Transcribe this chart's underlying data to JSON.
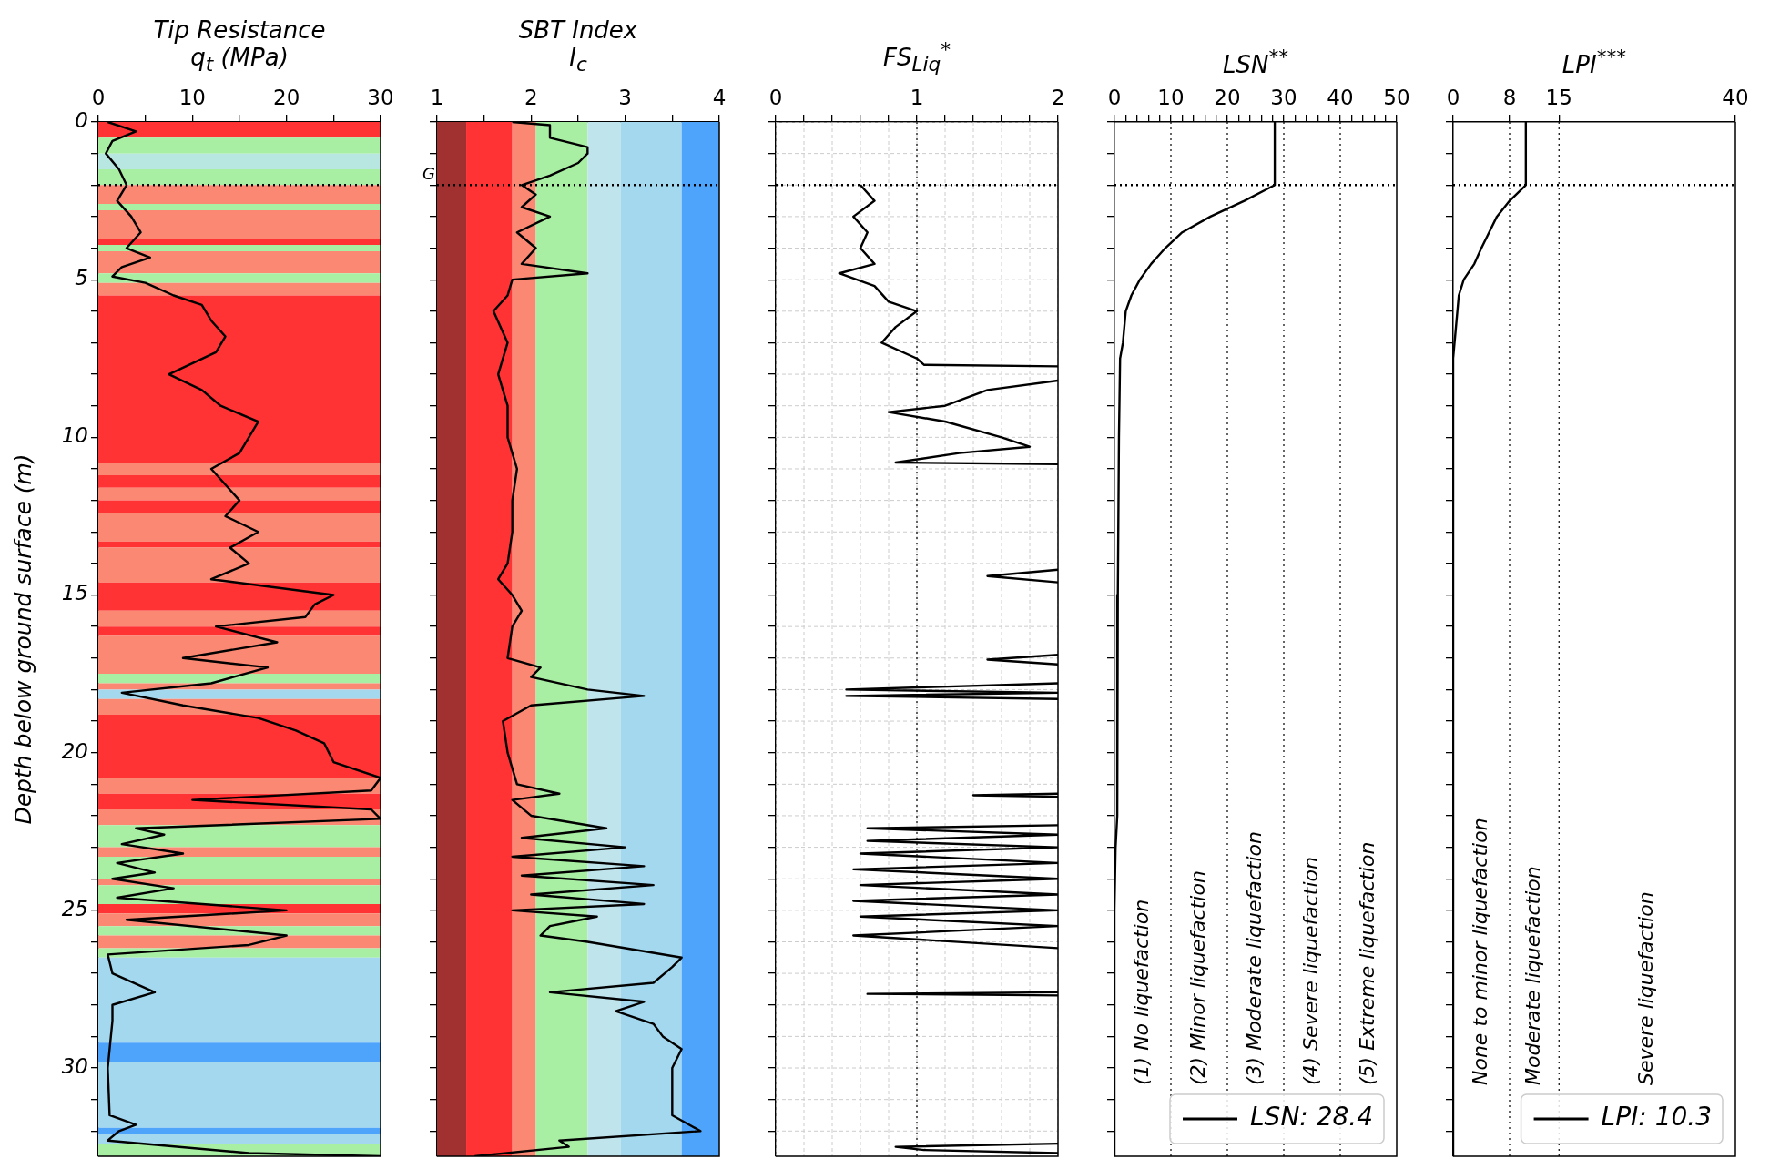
{
  "chart_data": [
    {
      "type": "line",
      "orientation": "horizontal",
      "title": "Tip Resistance",
      "subtitle": "q$_{t}$ (MPa)",
      "ylabel": "Depth below ground surface (m)",
      "marker": "none",
      "line_style": "solid",
      "xlim": [
        0,
        30
      ],
      "xticks": [
        0,
        {
          "value": 5,
          "label": null
        },
        10,
        {
          "value": 15,
          "label": null
        },
        20,
        {
          "value": 25,
          "label": null
        },
        30
      ],
      "ylim": [
        32.8,
        0
      ],
      "yticks": [
        0,
        {
          "value": 1,
          "label": null
        },
        {
          "value": 2,
          "label": null
        },
        {
          "value": 3,
          "label": null
        },
        {
          "value": 4,
          "label": null
        },
        5,
        {
          "value": 6,
          "label": null
        },
        {
          "value": 7,
          "label": null
        },
        {
          "value": 8,
          "label": null
        },
        {
          "value": 9,
          "label": null
        },
        10,
        {
          "value": 11,
          "label": null
        },
        {
          "value": 12,
          "label": null
        },
        {
          "value": 13,
          "label": null
        },
        {
          "value": 14,
          "label": null
        },
        15,
        {
          "value": 16,
          "label": null
        },
        {
          "value": 17,
          "label": null
        },
        {
          "value": 18,
          "label": null
        },
        {
          "value": 19,
          "label": null
        },
        20,
        {
          "value": 21,
          "label": null
        },
        {
          "value": 22,
          "label": null
        },
        {
          "value": 23,
          "label": null
        },
        {
          "value": 24,
          "label": null
        },
        25,
        {
          "value": 26,
          "label": null
        },
        {
          "value": 27,
          "label": null
        },
        {
          "value": 28,
          "label": null
        },
        {
          "value": 29,
          "label": null
        },
        30,
        {
          "value": 31,
          "label": null
        },
        {
          "value": 32,
          "label": null
        }
      ],
      "series": [
        {
          "color": "#000000",
          "x": [
            0,
            0.3,
            0.6,
            1,
            1.5,
            2,
            2.5,
            3,
            3.5,
            4,
            4.3,
            4.6,
            4.9,
            5.1,
            5.5,
            5.8,
            6.3,
            6.8,
            7.3,
            8,
            8.5,
            9,
            9.5,
            10,
            10.5,
            11,
            12,
            12.5,
            13,
            13.5,
            14,
            14.5,
            15,
            15.3,
            15.7,
            16,
            16.5,
            17,
            17.3,
            17.8,
            18.1,
            18.5,
            18.9,
            19.3,
            19.7,
            20.3,
            20.8,
            21.2,
            21.5,
            21.8,
            22.1,
            22.4,
            22.6,
            22.9,
            23.2,
            23.5,
            23.8,
            24,
            24.3,
            24.6,
            25,
            25.3,
            25.8,
            26.1,
            26.4,
            27,
            27.6,
            28,
            28.5,
            30,
            31.5,
            31.8,
            32,
            32.3,
            32.7,
            32.8
          ],
          "values": [
            1,
            4,
            1.5,
            0.8,
            2.2,
            3,
            2,
            3.5,
            4.5,
            3,
            5.5,
            2.5,
            1.5,
            5,
            8,
            11,
            12,
            13.5,
            12.5,
            7.5,
            11,
            13,
            17,
            16,
            15,
            12,
            15,
            13.5,
            17,
            14,
            16,
            12,
            25,
            23,
            22,
            12.5,
            19,
            9,
            18,
            12,
            2.5,
            9,
            17,
            21,
            24,
            25,
            30,
            29,
            10,
            29,
            30,
            4,
            7,
            2.5,
            9,
            2,
            6,
            1.5,
            8,
            2,
            20,
            3,
            20,
            16,
            1,
            1.5,
            6,
            1.5,
            1.5,
            1,
            1.2,
            4,
            2.2,
            1,
            16,
            30
          ]
        }
      ],
      "bands": [
        {
          "axis": "y",
          "from": 0,
          "to": 0.5,
          "color": "#ff3333"
        },
        {
          "axis": "y",
          "from": 0.5,
          "to": 1,
          "color": "#a8eea3"
        },
        {
          "axis": "y",
          "from": 1,
          "to": 1.5,
          "color": "#b8e6e0"
        },
        {
          "axis": "y",
          "from": 1.5,
          "to": 2,
          "color": "#a8eea3"
        },
        {
          "axis": "y",
          "from": 2,
          "to": 2.6,
          "color": "#fa8872"
        },
        {
          "axis": "y",
          "from": 2.6,
          "to": 2.8,
          "color": "#a8eea3"
        },
        {
          "axis": "y",
          "from": 2.8,
          "to": 3.7,
          "color": "#fa8872"
        },
        {
          "axis": "y",
          "from": 3.7,
          "to": 3.9,
          "color": "#ff3333"
        },
        {
          "axis": "y",
          "from": 3.9,
          "to": 4.1,
          "color": "#a8eea3"
        },
        {
          "axis": "y",
          "from": 4.1,
          "to": 4.8,
          "color": "#fa8872"
        },
        {
          "axis": "y",
          "from": 4.8,
          "to": 5.1,
          "color": "#a8eea3"
        },
        {
          "axis": "y",
          "from": 5.1,
          "to": 5.5,
          "color": "#fa8872"
        },
        {
          "axis": "y",
          "from": 5.5,
          "to": 10.8,
          "color": "#ff3333"
        },
        {
          "axis": "y",
          "from": 10.8,
          "to": 11.2,
          "color": "#fa8872"
        },
        {
          "axis": "y",
          "from": 11.2,
          "to": 11.6,
          "color": "#ff3333"
        },
        {
          "axis": "y",
          "from": 11.6,
          "to": 12,
          "color": "#fa8872"
        },
        {
          "axis": "y",
          "from": 12,
          "to": 12.4,
          "color": "#ff3333"
        },
        {
          "axis": "y",
          "from": 12.4,
          "to": 13.3,
          "color": "#fa8872"
        },
        {
          "axis": "y",
          "from": 13.3,
          "to": 13.5,
          "color": "#ff3333"
        },
        {
          "axis": "y",
          "from": 13.5,
          "to": 14.6,
          "color": "#fa8872"
        },
        {
          "axis": "y",
          "from": 14.6,
          "to": 15.5,
          "color": "#ff3333"
        },
        {
          "axis": "y",
          "from": 15.5,
          "to": 16,
          "color": "#fa8872"
        },
        {
          "axis": "y",
          "from": 16,
          "to": 16.3,
          "color": "#ff3333"
        },
        {
          "axis": "y",
          "from": 16.3,
          "to": 17.5,
          "color": "#fa8872"
        },
        {
          "axis": "y",
          "from": 17.5,
          "to": 17.8,
          "color": "#a8eea3"
        },
        {
          "axis": "y",
          "from": 17.8,
          "to": 18,
          "color": "#fa8872"
        },
        {
          "axis": "y",
          "from": 18,
          "to": 18.3,
          "color": "#a3d8ef"
        },
        {
          "axis": "y",
          "from": 18.3,
          "to": 18.8,
          "color": "#fa8872"
        },
        {
          "axis": "y",
          "from": 18.8,
          "to": 20.8,
          "color": "#ff3333"
        },
        {
          "axis": "y",
          "from": 20.8,
          "to": 21.3,
          "color": "#fa8872"
        },
        {
          "axis": "y",
          "from": 21.3,
          "to": 21.8,
          "color": "#ff3333"
        },
        {
          "axis": "y",
          "from": 21.8,
          "to": 22.3,
          "color": "#fa8872"
        },
        {
          "axis": "y",
          "from": 22.3,
          "to": 23,
          "color": "#a8eea3"
        },
        {
          "axis": "y",
          "from": 23,
          "to": 23.3,
          "color": "#fa8872"
        },
        {
          "axis": "y",
          "from": 23.3,
          "to": 24,
          "color": "#a8eea3"
        },
        {
          "axis": "y",
          "from": 24,
          "to": 24.2,
          "color": "#fa8872"
        },
        {
          "axis": "y",
          "from": 24.2,
          "to": 24.8,
          "color": "#a8eea3"
        },
        {
          "axis": "y",
          "from": 24.8,
          "to": 25.1,
          "color": "#ff3333"
        },
        {
          "axis": "y",
          "from": 25.1,
          "to": 25.5,
          "color": "#fa8872"
        },
        {
          "axis": "y",
          "from": 25.5,
          "to": 25.8,
          "color": "#a8eea3"
        },
        {
          "axis": "y",
          "from": 25.8,
          "to": 26.2,
          "color": "#fa8872"
        },
        {
          "axis": "y",
          "from": 26.2,
          "to": 26.5,
          "color": "#a8eea3"
        },
        {
          "axis": "y",
          "from": 26.5,
          "to": 29.2,
          "color": "#a3d8ef"
        },
        {
          "axis": "y",
          "from": 29.2,
          "to": 29.8,
          "color": "#4ea4fb"
        },
        {
          "axis": "y",
          "from": 29.8,
          "to": 31.9,
          "color": "#a3d8ef"
        },
        {
          "axis": "y",
          "from": 31.9,
          "to": 32.1,
          "color": "#4ea4fb"
        },
        {
          "axis": "y",
          "from": 32.1,
          "to": 32.4,
          "color": "#a3d8ef"
        },
        {
          "axis": "y",
          "from": 32.4,
          "to": 32.8,
          "color": "#a8eea3"
        }
      ],
      "ref_lines": [
        {
          "axis": "y",
          "value": 2,
          "line_style": "dotted",
          "color": "#000000"
        }
      ]
    },
    {
      "type": "line",
      "orientation": "horizontal",
      "title": "SBT Index",
      "subtitle": "I$_{c}$",
      "marker": "none",
      "line_style": "solid",
      "tick_labels": "x",
      "xlim": [
        1,
        4
      ],
      "xticks": [
        1,
        {
          "value": 1.5,
          "label": null
        },
        2,
        {
          "value": 2.5,
          "label": null
        },
        3,
        {
          "value": 3.5,
          "label": null
        },
        4
      ],
      "ylim": [
        32.8,
        0
      ],
      "yticks": [
        0,
        {
          "value": 1,
          "label": null
        },
        {
          "value": 2,
          "label": null
        },
        {
          "value": 3,
          "label": null
        },
        {
          "value": 4,
          "label": null
        },
        5,
        {
          "value": 6,
          "label": null
        },
        {
          "value": 7,
          "label": null
        },
        {
          "value": 8,
          "label": null
        },
        {
          "value": 9,
          "label": null
        },
        10,
        {
          "value": 11,
          "label": null
        },
        {
          "value": 12,
          "label": null
        },
        {
          "value": 13,
          "label": null
        },
        {
          "value": 14,
          "label": null
        },
        15,
        {
          "value": 16,
          "label": null
        },
        {
          "value": 17,
          "label": null
        },
        {
          "value": 18,
          "label": null
        },
        {
          "value": 19,
          "label": null
        },
        20,
        {
          "value": 21,
          "label": null
        },
        {
          "value": 22,
          "label": null
        },
        {
          "value": 23,
          "label": null
        },
        {
          "value": 24,
          "label": null
        },
        25,
        {
          "value": 26,
          "label": null
        },
        {
          "value": 27,
          "label": null
        },
        {
          "value": 28,
          "label": null
        },
        {
          "value": 29,
          "label": null
        },
        30,
        {
          "value": 31,
          "label": null
        },
        {
          "value": 32,
          "label": null
        }
      ],
      "series": [
        {
          "color": "#000000",
          "x": [
            0,
            0.1,
            0.5,
            0.8,
            1,
            1.3,
            1.7,
            2,
            2.3,
            2.7,
            3,
            3.5,
            4,
            4.5,
            4.8,
            5,
            5.5,
            6,
            7,
            8,
            9,
            10,
            11,
            12,
            13,
            14,
            14.5,
            15,
            15.5,
            16,
            17,
            17.3,
            17.6,
            18,
            18.2,
            18.5,
            19,
            20,
            21,
            21.3,
            21.5,
            22,
            22.4,
            22.7,
            23,
            23.3,
            23.6,
            23.9,
            24.2,
            24.5,
            24.8,
            25,
            25.2,
            25.5,
            25.8,
            26,
            26.5,
            26.8,
            27.3,
            27.6,
            27.9,
            28.2,
            28.6,
            29,
            29.4,
            30,
            31,
            31.5,
            32,
            32.3,
            32.5,
            32.8
          ],
          "values": [
            1.8,
            2.2,
            2.2,
            2.6,
            2.6,
            2.5,
            2.2,
            1.9,
            2.05,
            1.9,
            2.2,
            1.85,
            2.05,
            1.9,
            2.6,
            1.8,
            1.75,
            1.6,
            1.75,
            1.65,
            1.75,
            1.75,
            1.85,
            1.8,
            1.8,
            1.75,
            1.65,
            1.8,
            1.9,
            1.8,
            1.75,
            2.1,
            2.0,
            2.6,
            3.2,
            2.0,
            1.7,
            1.75,
            1.85,
            2.3,
            1.8,
            2.0,
            2.8,
            1.9,
            3.0,
            1.8,
            3.2,
            1.9,
            3.3,
            2.0,
            3.2,
            1.8,
            2.7,
            2.2,
            2.1,
            2.6,
            3.6,
            3.5,
            3.3,
            2.2,
            3.2,
            2.9,
            3.3,
            3.4,
            3.6,
            3.5,
            3.5,
            3.5,
            3.8,
            2.3,
            2.4,
            1.4
          ]
        }
      ],
      "bands": [
        {
          "axis": "x",
          "from": 1,
          "to": 1.31,
          "color": "#a13030"
        },
        {
          "axis": "x",
          "from": 1.31,
          "to": 1.8,
          "color": "#ff3333"
        },
        {
          "axis": "x",
          "from": 1.8,
          "to": 2.05,
          "color": "#fa8872"
        },
        {
          "axis": "x",
          "from": 2.05,
          "to": 2.6,
          "color": "#a8eea3"
        },
        {
          "axis": "x",
          "from": 2.6,
          "to": 2.95,
          "color": "#c0e4ec"
        },
        {
          "axis": "x",
          "from": 2.95,
          "to": 3.6,
          "color": "#a3d8ef"
        },
        {
          "axis": "x",
          "from": 3.6,
          "to": 4,
          "color": "#4ea4fb"
        }
      ],
      "ref_lines": [
        {
          "axis": "y",
          "value": 2,
          "label": "G",
          "line_style": "dotted",
          "color": "#000000"
        }
      ]
    },
    {
      "type": "line",
      "orientation": "horizontal",
      "title": "FS$_{Liq}$$^{*}$",
      "marker": "none",
      "line_style": "solid",
      "tick_labels": "x",
      "grid": true,
      "xlim": [
        0,
        2
      ],
      "xticks": [
        0,
        {
          "value": 0.2,
          "label": null
        },
        {
          "value": 0.4,
          "label": null
        },
        {
          "value": 0.6,
          "label": null
        },
        {
          "value": 0.8,
          "label": null
        },
        1,
        {
          "value": 1.2,
          "label": null
        },
        {
          "value": 1.4,
          "label": null
        },
        {
          "value": 1.6,
          "label": null
        },
        {
          "value": 1.8,
          "label": null
        },
        2
      ],
      "ylim": [
        32.8,
        0
      ],
      "yticks": [
        0,
        {
          "value": 1,
          "label": null
        },
        {
          "value": 2,
          "label": null
        },
        {
          "value": 3,
          "label": null
        },
        {
          "value": 4,
          "label": null
        },
        5,
        {
          "value": 6,
          "label": null
        },
        {
          "value": 7,
          "label": null
        },
        {
          "value": 8,
          "label": null
        },
        {
          "value": 9,
          "label": null
        },
        10,
        {
          "value": 11,
          "label": null
        },
        {
          "value": 12,
          "label": null
        },
        {
          "value": 13,
          "label": null
        },
        {
          "value": 14,
          "label": null
        },
        15,
        {
          "value": 16,
          "label": null
        },
        {
          "value": 17,
          "label": null
        },
        {
          "value": 18,
          "label": null
        },
        {
          "value": 19,
          "label": null
        },
        20,
        {
          "value": 21,
          "label": null
        },
        {
          "value": 22,
          "label": null
        },
        {
          "value": 23,
          "label": null
        },
        {
          "value": 24,
          "label": null
        },
        25,
        {
          "value": 26,
          "label": null
        },
        {
          "value": 27,
          "label": null
        },
        {
          "value": 28,
          "label": null
        },
        {
          "value": 29,
          "label": null
        },
        30,
        {
          "value": 31,
          "label": null
        },
        {
          "value": 32,
          "label": null
        }
      ],
      "series": [
        {
          "color": "#000000",
          "x": [
            2,
            2.5,
            3,
            3.5,
            4,
            4.5,
            4.8,
            5.2,
            5.7,
            6,
            6.5,
            7,
            7.5,
            7.7,
            7.75,
            8,
            8.2,
            8.5,
            9,
            9.2,
            9.5,
            10,
            10.3,
            10.5,
            10.8,
            10.85,
            12,
            14.2,
            14.4,
            14.6,
            16,
            16.9,
            17.05,
            17.2,
            17.5,
            17.8,
            18,
            18.1,
            18.2,
            18.3,
            20,
            21.3,
            21.35,
            21.4,
            22,
            22.3,
            22.4,
            22.6,
            22.8,
            23,
            23.2,
            23.5,
            23.7,
            24,
            24.2,
            24.5,
            24.7,
            25,
            25.2,
            25.5,
            25.8,
            26.2,
            27,
            27.6,
            27.65,
            27.7,
            30,
            32.4,
            32.5,
            32.6,
            32.7
          ],
          "values": [
            0.6,
            0.7,
            0.55,
            0.65,
            0.6,
            0.7,
            0.45,
            0.7,
            0.8,
            1,
            0.85,
            0.75,
            1,
            1.05,
            2,
            null,
            2,
            1.5,
            1.2,
            0.8,
            1.2,
            1.6,
            1.8,
            1.3,
            0.85,
            2,
            null,
            2,
            1.5,
            2,
            null,
            2,
            1.5,
            2,
            null,
            2,
            0.5,
            2,
            0.5,
            2,
            null,
            2,
            1.4,
            2,
            null,
            2,
            0.65,
            2,
            0.65,
            2,
            0.6,
            2,
            0.55,
            2,
            0.6,
            2,
            0.55,
            2,
            0.6,
            2,
            0.55,
            2,
            null,
            2,
            0.65,
            2,
            null,
            2,
            0.85,
            1.05,
            2
          ]
        }
      ],
      "ref_lines": [
        {
          "axis": "y",
          "value": 2,
          "line_style": "dotted",
          "color": "#000000"
        },
        {
          "axis": "x",
          "value": 1,
          "line_style": "dotted",
          "color": "#000000"
        }
      ]
    },
    {
      "type": "line",
      "orientation": "horizontal",
      "title": "LSN$^{**}$",
      "marker": "none",
      "line_style": "solid",
      "tick_labels": "x",
      "legend": "bottom right",
      "xlim": [
        0,
        50
      ],
      "xticks": [
        0,
        {
          "value": 2,
          "label": null
        },
        {
          "value": 4,
          "label": null
        },
        {
          "value": 6,
          "label": null
        },
        {
          "value": 8,
          "label": null
        },
        10,
        {
          "value": 12,
          "label": null
        },
        {
          "value": 14,
          "label": null
        },
        {
          "value": 16,
          "label": null
        },
        {
          "value": 18,
          "label": null
        },
        20,
        {
          "value": 22,
          "label": null
        },
        {
          "value": 24,
          "label": null
        },
        {
          "value": 26,
          "label": null
        },
        {
          "value": 28,
          "label": null
        },
        30,
        {
          "value": 32,
          "label": null
        },
        {
          "value": 34,
          "label": null
        },
        {
          "value": 36,
          "label": null
        },
        {
          "value": 38,
          "label": null
        },
        40,
        {
          "value": 42,
          "label": null
        },
        {
          "value": 44,
          "label": null
        },
        {
          "value": 46,
          "label": null
        },
        {
          "value": 48,
          "label": null
        },
        50
      ],
      "ylim": [
        32.8,
        0
      ],
      "yticks": [
        0,
        {
          "value": 1,
          "label": null
        },
        {
          "value": 2,
          "label": null
        },
        {
          "value": 3,
          "label": null
        },
        {
          "value": 4,
          "label": null
        },
        5,
        {
          "value": 6,
          "label": null
        },
        {
          "value": 7,
          "label": null
        },
        {
          "value": 8,
          "label": null
        },
        {
          "value": 9,
          "label": null
        },
        10,
        {
          "value": 11,
          "label": null
        },
        {
          "value": 12,
          "label": null
        },
        {
          "value": 13,
          "label": null
        },
        {
          "value": 14,
          "label": null
        },
        15,
        {
          "value": 16,
          "label": null
        },
        {
          "value": 17,
          "label": null
        },
        {
          "value": 18,
          "label": null
        },
        {
          "value": 19,
          "label": null
        },
        20,
        {
          "value": 21,
          "label": null
        },
        {
          "value": 22,
          "label": null
        },
        {
          "value": 23,
          "label": null
        },
        {
          "value": 24,
          "label": null
        },
        25,
        {
          "value": 26,
          "label": null
        },
        {
          "value": 27,
          "label": null
        },
        {
          "value": 28,
          "label": null
        },
        {
          "value": 29,
          "label": null
        },
        30,
        {
          "value": 31,
          "label": null
        },
        {
          "value": 32,
          "label": null
        }
      ],
      "series": [
        {
          "name": "LSN: 28.4",
          "color": "#000000",
          "x": [
            0,
            2,
            2.5,
            3,
            3.5,
            4,
            4.5,
            5,
            5.5,
            6,
            7,
            7.5,
            10,
            15,
            22,
            23,
            25,
            32.8
          ],
          "values": [
            28.4,
            28.4,
            23,
            17,
            12,
            9,
            6.5,
            4.5,
            3,
            2,
            1.5,
            1,
            0.8,
            0.6,
            0.5,
            0.2,
            0,
            0
          ]
        }
      ],
      "annotations": [
        "(1) No liquefaction",
        "(2) Minor liquefaction",
        "(3) Moderate liquefaction",
        "(4) Severe liquefaction",
        "(5) Extreme liquefaction"
      ],
      "ref_lines": [
        {
          "axis": "y",
          "value": 2,
          "line_style": "dotted",
          "color": "#000000"
        },
        {
          "axis": "x",
          "value": 10,
          "line_style": "dotted",
          "color": "#000000"
        },
        {
          "axis": "x",
          "value": 20,
          "line_style": "dotted",
          "color": "#000000"
        },
        {
          "axis": "x",
          "value": 30,
          "line_style": "dotted",
          "color": "#000000"
        },
        {
          "axis": "x",
          "value": 40,
          "line_style": "dotted",
          "color": "#000000"
        }
      ]
    },
    {
      "type": "line",
      "orientation": "horizontal",
      "title": "LPI$^{***}$",
      "marker": "none",
      "line_style": "solid",
      "tick_labels": "x",
      "legend": "bottom right",
      "xlim": [
        0,
        40
      ],
      "xticks": [
        0,
        8,
        15,
        40
      ],
      "ylim": [
        32.8,
        0
      ],
      "yticks": [
        0,
        {
          "value": 1,
          "label": null
        },
        {
          "value": 2,
          "label": null
        },
        {
          "value": 3,
          "label": null
        },
        {
          "value": 4,
          "label": null
        },
        5,
        {
          "value": 6,
          "label": null
        },
        {
          "value": 7,
          "label": null
        },
        {
          "value": 8,
          "label": null
        },
        {
          "value": 9,
          "label": null
        },
        10,
        {
          "value": 11,
          "label": null
        },
        {
          "value": 12,
          "label": null
        },
        {
          "value": 13,
          "label": null
        },
        {
          "value": 14,
          "label": null
        },
        15,
        {
          "value": 16,
          "label": null
        },
        {
          "value": 17,
          "label": null
        },
        {
          "value": 18,
          "label": null
        },
        {
          "value": 19,
          "label": null
        },
        20,
        {
          "value": 21,
          "label": null
        },
        {
          "value": 22,
          "label": null
        },
        {
          "value": 23,
          "label": null
        },
        {
          "value": 24,
          "label": null
        },
        25,
        {
          "value": 26,
          "label": null
        },
        {
          "value": 27,
          "label": null
        },
        {
          "value": 28,
          "label": null
        },
        {
          "value": 29,
          "label": null
        },
        30,
        {
          "value": 31,
          "label": null
        },
        {
          "value": 32,
          "label": null
        }
      ],
      "series": [
        {
          "name": "LPI: 10.3",
          "color": "#000000",
          "x": [
            0,
            2,
            2.5,
            3,
            4,
            4.5,
            5,
            5.5,
            6.5,
            7.5,
            32.8
          ],
          "values": [
            10.3,
            10.3,
            8,
            6.2,
            4,
            3,
            1.5,
            0.8,
            0.4,
            0,
            0
          ]
        }
      ],
      "annotations": [
        "None to minor liquefaction",
        "Moderate liquefaction",
        "Severe liquefaction"
      ],
      "ref_lines": [
        {
          "axis": "y",
          "value": 2,
          "line_style": "dotted",
          "color": "#000000"
        },
        {
          "axis": "x",
          "value": 8,
          "line_style": "dotted",
          "color": "#000000"
        },
        {
          "axis": "x",
          "value": 15,
          "line_style": "dotted",
          "color": "#000000"
        }
      ]
    }
  ]
}
